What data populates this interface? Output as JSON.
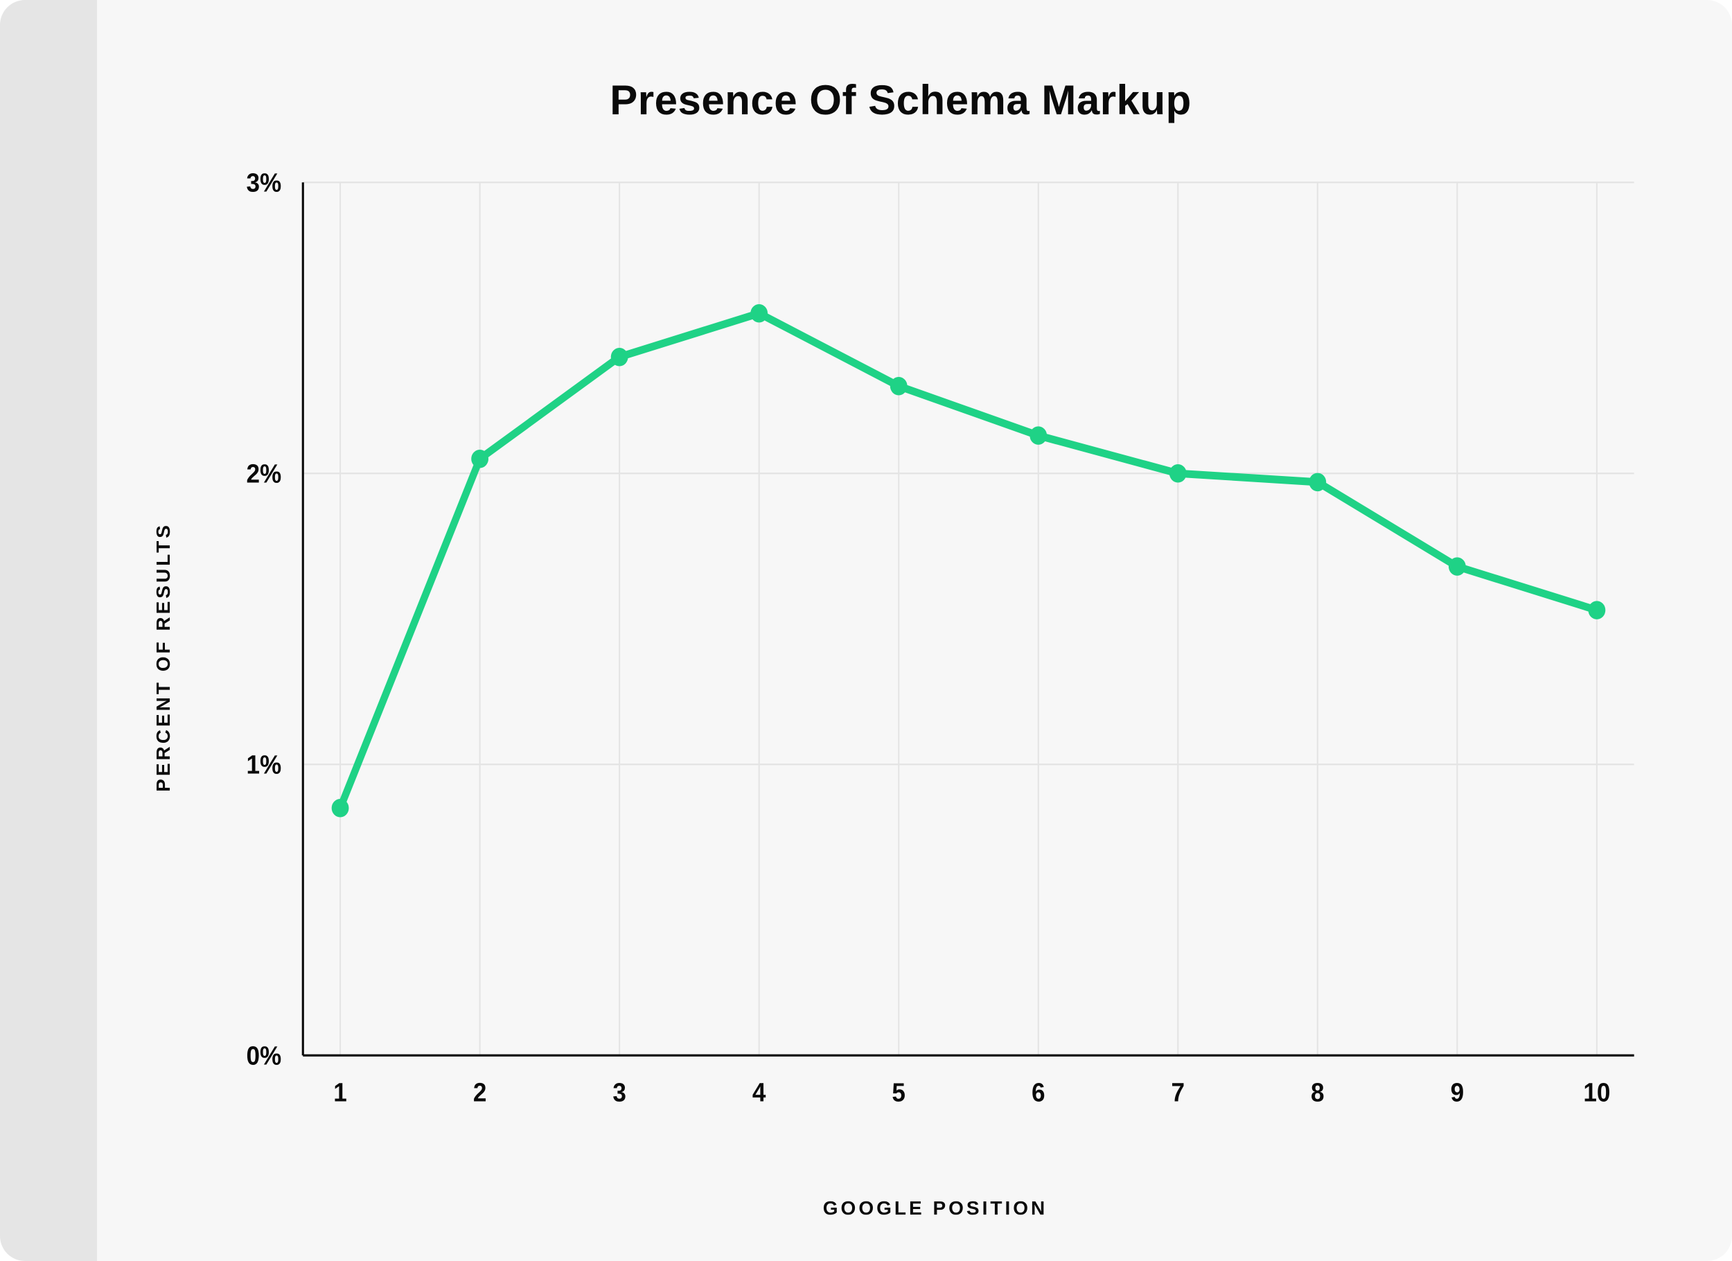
{
  "chart": {
    "type": "line",
    "title": "Presence Of Schema Markup",
    "x_label": "GOOGLE POSITION",
    "y_label": "PERCENT OF RESULTS",
    "x_values": [
      1,
      2,
      3,
      4,
      5,
      6,
      7,
      8,
      9,
      10
    ],
    "y_values": [
      0.85,
      2.05,
      2.4,
      2.55,
      2.3,
      2.13,
      2.0,
      1.97,
      1.68,
      1.53
    ],
    "x_ticks": [
      "1",
      "2",
      "3",
      "4",
      "5",
      "6",
      "7",
      "8",
      "9",
      "10"
    ],
    "y_ticks": [
      "0%",
      "1%",
      "2%",
      "3%"
    ],
    "y_tick_values": [
      0,
      1,
      2,
      3
    ],
    "xlim": [
      1,
      10
    ],
    "ylim": [
      0,
      3
    ],
    "line_color": "#1fd286",
    "line_width": 10,
    "marker_radius": 12,
    "marker_color": "#1fd286",
    "grid_color": "#e4e4e4",
    "axis_color": "#0a0a0a",
    "background_color": "#f7f7f7",
    "left_stub_color": "#e5e5e5",
    "title_fontsize": 60,
    "tick_fontsize": 34,
    "label_fontsize": 28,
    "label_letterspacing": 4
  }
}
